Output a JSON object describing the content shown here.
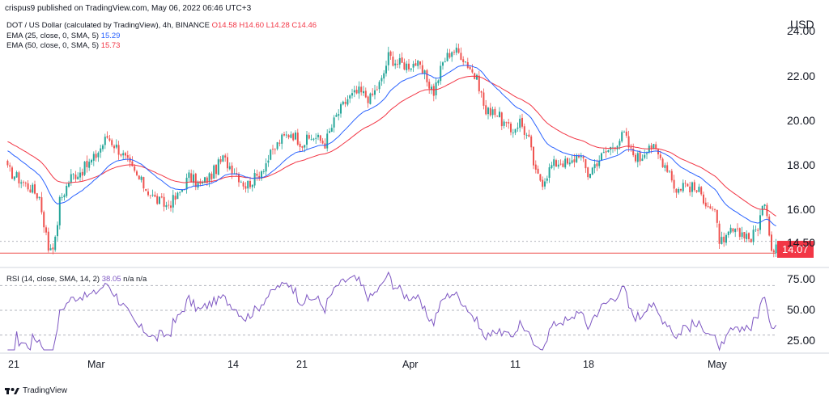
{
  "header": {
    "attribution": "crispus9 published on TradingView.com, May 06, 2022 06:46 UTC+3",
    "currency": "USD"
  },
  "legend": {
    "symbol": "DOT / US Dollar (calculated by TradingView), 4h, BINANCE",
    "ohlc": "O14.58  H14.60  L14.28  C14.46",
    "ema25_label": "EMA (25, close, 0, SMA, 5)",
    "ema25_value": "15.29",
    "ema50_label": "EMA (50, close, 0, SMA, 5)",
    "ema50_value": "15.73",
    "rsi_label": "RSI (14, close, SMA, 14, 2)",
    "rsi_value": "38.05",
    "rsi_na": "n/a  n/a"
  },
  "price_tag": "14.07",
  "footer_logo": "TradingView",
  "colors": {
    "up": "#26a69a",
    "down": "#ef5350",
    "ema25": "#2962ff",
    "ema50": "#f23645",
    "rsi": "#7e57c2",
    "grid": "#b2b5be"
  },
  "chart_data": {
    "type": "candlestick",
    "price_axis": {
      "ticks": [
        "24.00",
        "22.00",
        "20.00",
        "18.00",
        "16.00",
        "14.50"
      ],
      "tick_values": [
        24,
        22,
        20,
        18,
        16,
        14.5
      ],
      "range": [
        13.9,
        24.7
      ]
    },
    "rsi_axis": {
      "ticks": [
        "75.00",
        "50.00",
        "25.00"
      ],
      "tick_values": [
        75,
        50,
        25
      ],
      "range": [
        18,
        82
      ],
      "bands": [
        70,
        50,
        30
      ]
    },
    "x_ticks": [
      "21",
      "Mar",
      "14",
      "21",
      "Apr",
      "11",
      "18",
      "May"
    ],
    "horizontal_lines": [
      14.07,
      14.6
    ],
    "anchors": [
      [
        0,
        17.8
      ],
      [
        10,
        17.0
      ],
      [
        14,
        16.6
      ],
      [
        18,
        14.3
      ],
      [
        21,
        14.6
      ],
      [
        23,
        16.4
      ],
      [
        28,
        17.5
      ],
      [
        33,
        17.8
      ],
      [
        38,
        18.3
      ],
      [
        44,
        19.3
      ],
      [
        50,
        18.6
      ],
      [
        55,
        17.8
      ],
      [
        60,
        17.1
      ],
      [
        65,
        16.5
      ],
      [
        70,
        16.2
      ],
      [
        75,
        16.6
      ],
      [
        80,
        17.5
      ],
      [
        85,
        17.1
      ],
      [
        90,
        17.6
      ],
      [
        95,
        18.3
      ],
      [
        100,
        17.8
      ],
      [
        105,
        17.1
      ],
      [
        110,
        17.5
      ],
      [
        115,
        18.3
      ],
      [
        120,
        19.1
      ],
      [
        125,
        19.5
      ],
      [
        130,
        19.0
      ],
      [
        135,
        19.3
      ],
      [
        140,
        19.0
      ],
      [
        145,
        20.2
      ],
      [
        150,
        21.0
      ],
      [
        155,
        21.3
      ],
      [
        160,
        21.0
      ],
      [
        165,
        21.8
      ],
      [
        168,
        22.9
      ],
      [
        172,
        22.6
      ],
      [
        176,
        22.5
      ],
      [
        180,
        22.6
      ],
      [
        184,
        22.0
      ],
      [
        188,
        21.3
      ],
      [
        192,
        22.6
      ],
      [
        196,
        23.2
      ],
      [
        200,
        23.0
      ],
      [
        204,
        22.4
      ],
      [
        208,
        21.6
      ],
      [
        211,
        20.3
      ],
      [
        214,
        20.6
      ],
      [
        218,
        20.0
      ],
      [
        222,
        19.5
      ],
      [
        226,
        20.0
      ],
      [
        230,
        19.1
      ],
      [
        233,
        17.6
      ],
      [
        236,
        17.3
      ],
      [
        240,
        18.0
      ],
      [
        244,
        18.2
      ],
      [
        248,
        18.0
      ],
      [
        252,
        18.6
      ],
      [
        256,
        17.6
      ],
      [
        260,
        18.2
      ],
      [
        264,
        18.6
      ],
      [
        268,
        19.0
      ],
      [
        272,
        19.4
      ],
      [
        275,
        18.6
      ],
      [
        279,
        18.3
      ],
      [
        283,
        19.0
      ],
      [
        286,
        18.6
      ],
      [
        289,
        18.2
      ],
      [
        292,
        17.8
      ],
      [
        295,
        16.8
      ],
      [
        298,
        17.2
      ],
      [
        302,
        17.0
      ],
      [
        305,
        16.8
      ],
      [
        309,
        16.3
      ],
      [
        312,
        15.8
      ],
      [
        314,
        14.7
      ],
      [
        316,
        14.4
      ],
      [
        319,
        15.1
      ],
      [
        322,
        14.9
      ],
      [
        325,
        15.0
      ],
      [
        328,
        14.7
      ],
      [
        331,
        15.3
      ],
      [
        333,
        16.1
      ],
      [
        335,
        15.9
      ],
      [
        337,
        14.3
      ],
      [
        339,
        14.46
      ]
    ],
    "ema25_last": 15.29,
    "ema50_last": 15.73,
    "rsi_last": 38.05
  }
}
